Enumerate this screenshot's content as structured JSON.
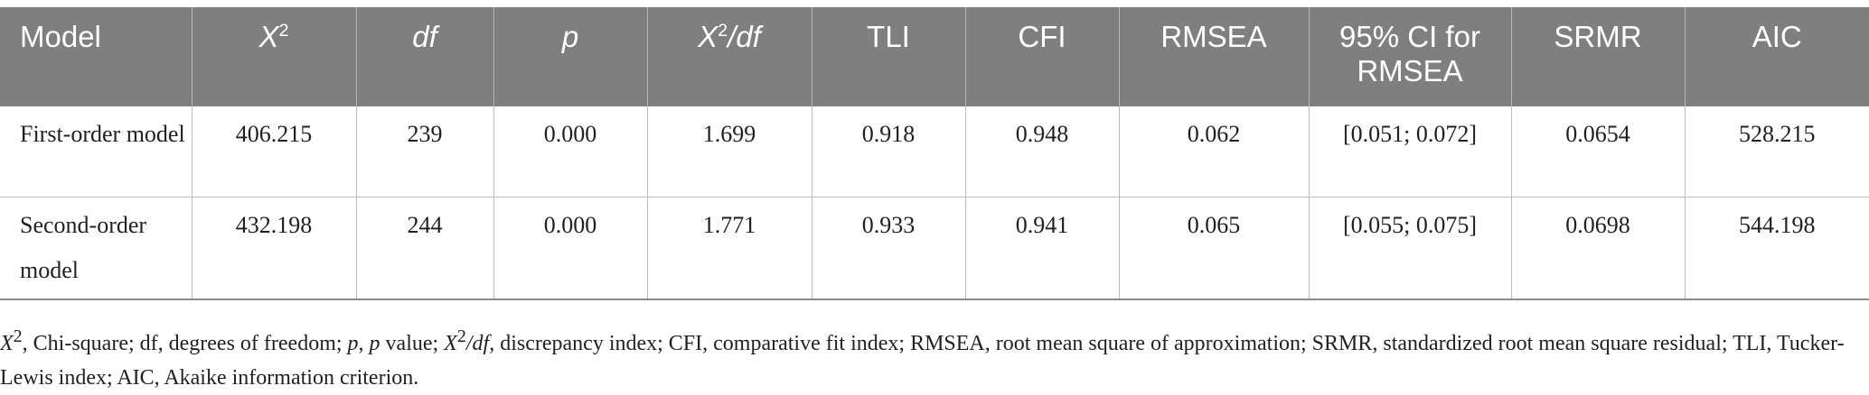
{
  "table": {
    "columns": [
      {
        "key": "model",
        "label": "Model",
        "italic": false
      },
      {
        "key": "chi2",
        "label": "X",
        "sup": "2",
        "italic": true
      },
      {
        "key": "df",
        "label": "df",
        "italic": true
      },
      {
        "key": "p",
        "label": "p",
        "italic": true
      },
      {
        "key": "chi2df",
        "label": "X",
        "sup": "2",
        "suffix": "/df",
        "italic": true
      },
      {
        "key": "tli",
        "label": "TLI",
        "italic": false
      },
      {
        "key": "cfi",
        "label": "CFI",
        "italic": false
      },
      {
        "key": "rmsea",
        "label": "RMSEA",
        "italic": false
      },
      {
        "key": "ci",
        "label": "95% CI for RMSEA",
        "italic": false
      },
      {
        "key": "srmr",
        "label": "SRMR",
        "italic": false
      },
      {
        "key": "aic",
        "label": "AIC",
        "italic": false
      }
    ],
    "rows": [
      {
        "model": "First-order model",
        "chi2": "406.215",
        "df": "239",
        "p": "0.000",
        "chi2df": "1.699",
        "tli": "0.918",
        "cfi": "0.948",
        "rmsea": "0.062",
        "ci": "[0.051; 0.072]",
        "srmr": "0.0654",
        "aic": "528.215"
      },
      {
        "model": "Second-order model",
        "chi2": "432.198",
        "df": "244",
        "p": "0.000",
        "chi2df": "1.771",
        "tli": "0.933",
        "cfi": "0.941",
        "rmsea": "0.065",
        "ci": "[0.055; 0.075]",
        "srmr": "0.0698",
        "aic": "544.198"
      }
    ]
  },
  "footnote": {
    "chi_symbol": "X",
    "chi_sup": "2",
    "part1": ", Chi-square; df, degrees of freedom; ",
    "p_italic_1": "p",
    "part2": ", ",
    "p_italic_2": "p",
    "part3": " value; ",
    "chi_symbol_2": "X",
    "chi_sup_2": "2",
    "slash_df": "/df",
    "part4": ", discrepancy index; CFI, comparative fit index; RMSEA, root mean square of approximation; SRMR, standardized root mean square residual; TLI, Tucker-Lewis index; AIC, Akaike information criterion."
  }
}
